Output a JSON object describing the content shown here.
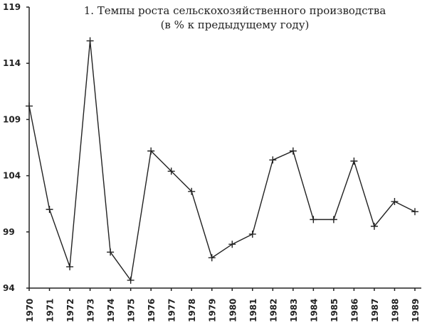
{
  "chart_data": {
    "type": "line",
    "title": "1. Темпы роста сельскохозяйственного производства",
    "subtitle": "(в % к предыдущему году)",
    "categories": [
      "1970",
      "1971",
      "1972",
      "1973",
      "1974",
      "1975",
      "1976",
      "1977",
      "1978",
      "1979",
      "1980",
      "1981",
      "1982",
      "1983",
      "1984",
      "1985",
      "1986",
      "1987",
      "1988",
      "1989"
    ],
    "values": [
      110.2,
      101.0,
      95.9,
      116.0,
      97.2,
      94.7,
      106.2,
      104.4,
      102.6,
      96.7,
      97.9,
      98.8,
      105.4,
      106.2,
      100.1,
      100.1,
      105.3,
      99.5,
      101.7,
      100.8
    ],
    "color": "#222222",
    "ylim": [
      94,
      119
    ],
    "yticks": [
      94,
      99,
      104,
      109,
      114,
      119
    ]
  }
}
